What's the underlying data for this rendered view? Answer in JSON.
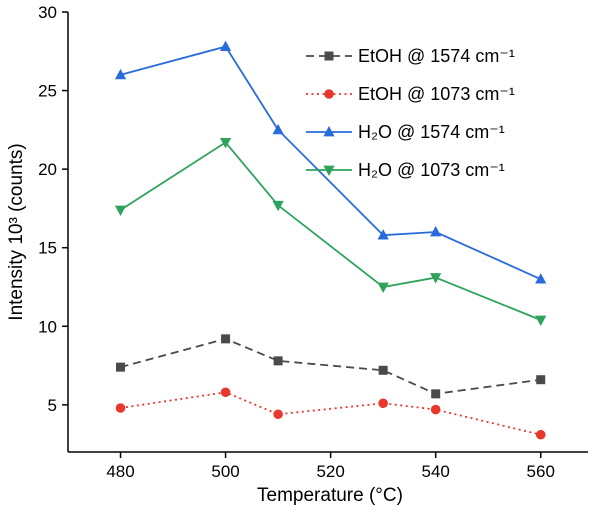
{
  "chart_data": {
    "type": "line",
    "title": "",
    "xlabel": "Temperature (°C)",
    "ylabel": "Intensity 10³ (counts)",
    "xlim": [
      470,
      569
    ],
    "ylim": [
      2,
      30
    ],
    "xticks": [
      480,
      500,
      520,
      540,
      560
    ],
    "yticks": [
      5,
      10,
      15,
      20,
      25,
      30
    ],
    "grid": false,
    "legend_position": "top-right-inside",
    "x": [
      480,
      500,
      510,
      530,
      540,
      560
    ],
    "series": [
      {
        "name": "EtOH @ 1574 cm⁻¹",
        "values": [
          7.4,
          9.2,
          7.8,
          7.2,
          5.7,
          6.6
        ],
        "color": "#4a4a4a",
        "line": "dashed",
        "marker": "square"
      },
      {
        "name": "EtOH @ 1073 cm⁻¹",
        "values": [
          4.8,
          5.8,
          4.4,
          5.1,
          4.7,
          3.1
        ],
        "color": "#e8382d",
        "line": "dotted",
        "marker": "circle"
      },
      {
        "name": "H₂O @ 1574 cm⁻¹",
        "values": [
          26.0,
          27.8,
          22.5,
          15.8,
          16.0,
          13.0
        ],
        "color": "#2a6bdb",
        "line": "solid",
        "marker": "triangle-up"
      },
      {
        "name": "H₂O @ 1073 cm⁻¹",
        "values": [
          17.4,
          21.7,
          17.7,
          12.5,
          13.1,
          10.4
        ],
        "color": "#2ea35c",
        "line": "solid",
        "marker": "triangle-down"
      }
    ],
    "axis_color": "#000000",
    "text_color": "#000000"
  }
}
